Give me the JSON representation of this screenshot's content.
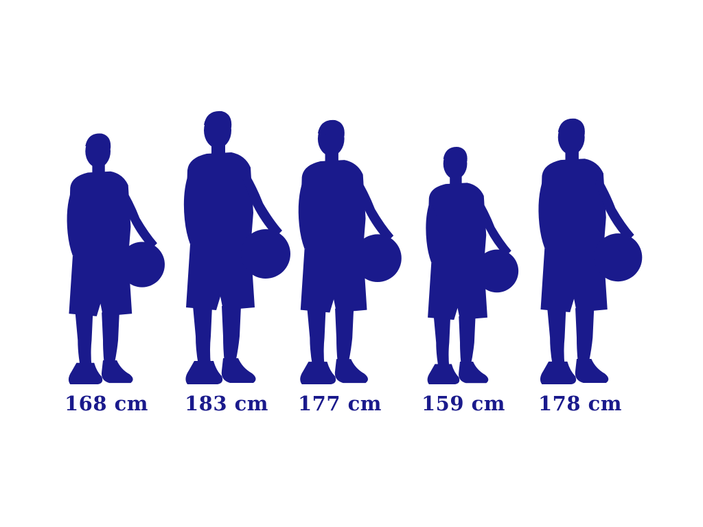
{
  "chart_data": {
    "type": "pictograph",
    "unit": "cm",
    "values": [
      168,
      183,
      177,
      159,
      178
    ],
    "labels": [
      "168 cm",
      "183 cm",
      "177 cm",
      "159 cm",
      "178 cm"
    ],
    "icon": "basketball-player-silhouette-icon",
    "colors": {
      "figure": "#1a1a8c",
      "label": "#1a1a8c",
      "background": "#ffffff"
    }
  }
}
